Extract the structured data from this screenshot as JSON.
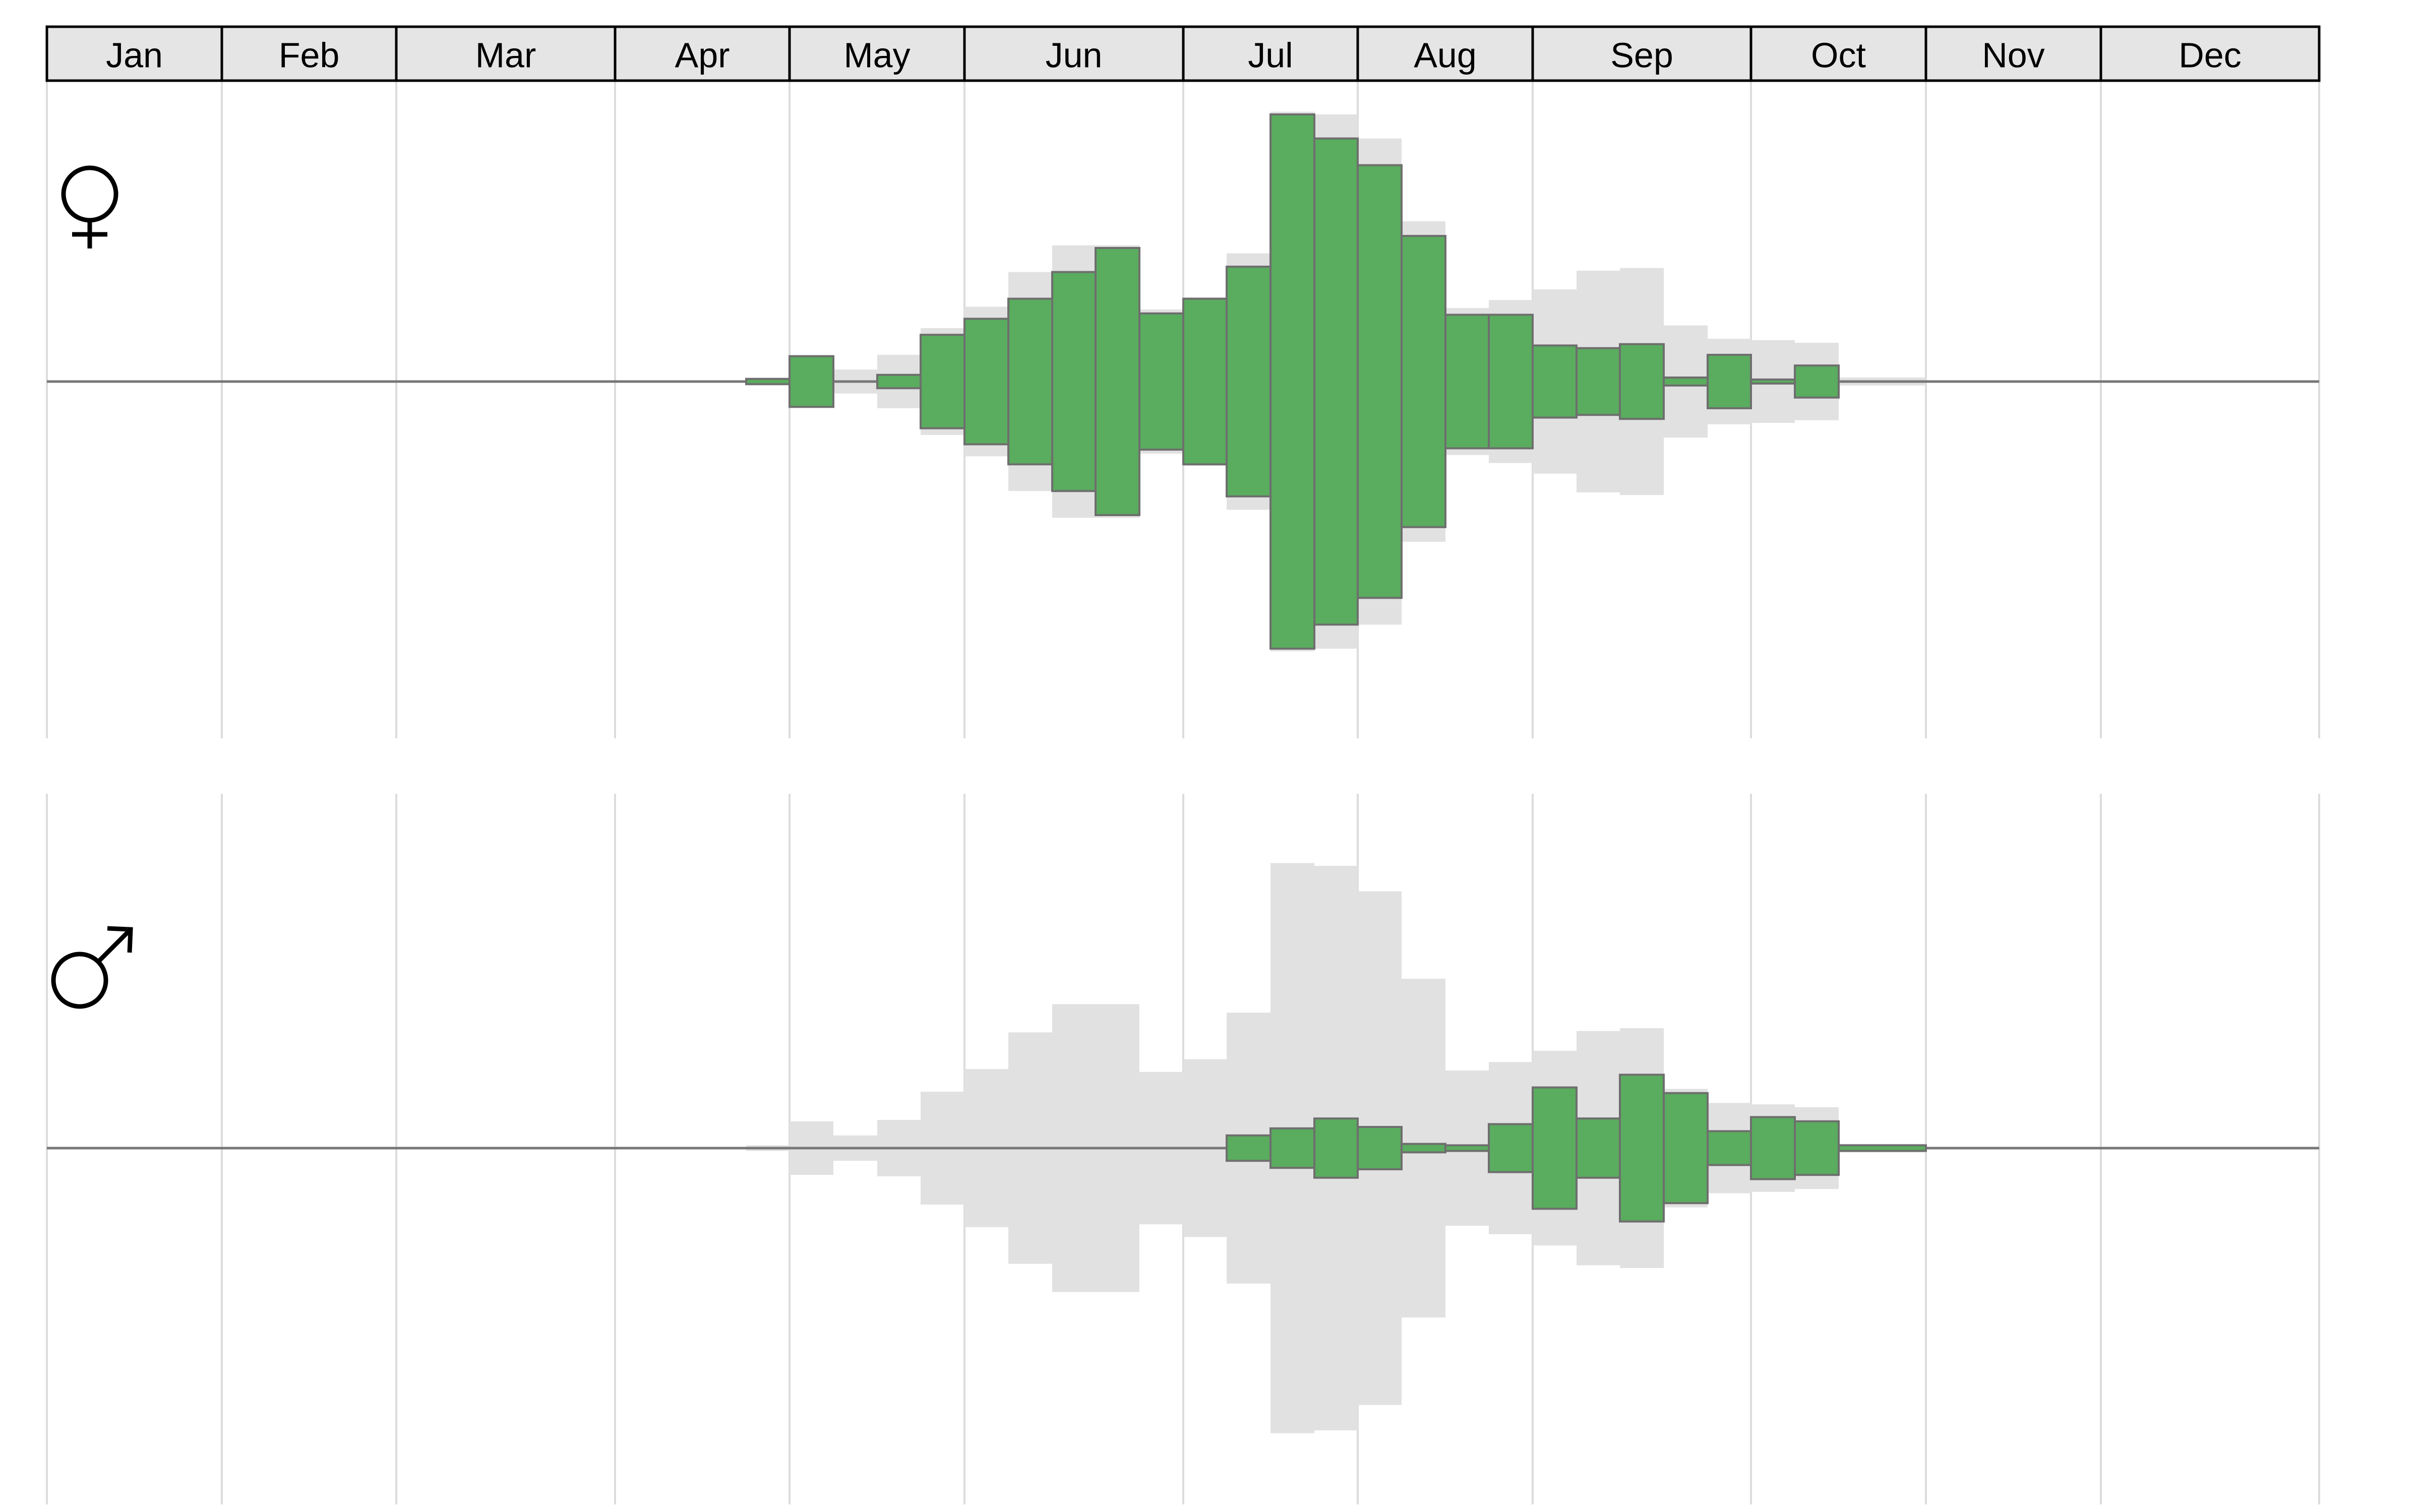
{
  "months": [
    "Jan",
    "Feb",
    "Mar",
    "Apr",
    "May",
    "Jun",
    "Jul",
    "Aug",
    "Sep",
    "Oct",
    "Nov",
    "Dec"
  ],
  "colors": {
    "bar": "#5aac5e",
    "bar_outline": "#6e6e6e",
    "overall_background": "#e1e1e1",
    "header_fill": "#e5e5e5",
    "grid": "#dcdcdc",
    "baseline": "#777777"
  },
  "panels": [
    {
      "id": "female",
      "icon": "female-symbol-icon"
    },
    {
      "id": "male",
      "icon": "male-symbol-icon"
    }
  ],
  "chart_data": {
    "type": "bar",
    "description_of_values": "Mirrored bars around a central baseline; one bar per roughly 10-day period. Values are relative magnitudes on a 0-1 scale (no numeric axis is printed).",
    "periods": [
      "Apr-3",
      "May-1",
      "May-2",
      "May-3",
      "Jun-1",
      "Jun-2",
      "Jun-3",
      "Jun-4",
      "Jun-5",
      "Jul-1",
      "Jul-2",
      "Jul-3",
      "Jul-4",
      "Aug-1",
      "Aug-2",
      "Aug-3",
      "Aug-4",
      "Sep-1",
      "Sep-2",
      "Sep-3",
      "Sep-4",
      "Sep-5",
      "Oct-1",
      "Oct-2",
      "Oct-3",
      "Nov-1"
    ],
    "series": [
      {
        "panel": "female",
        "values": [
          0.01,
          0.095,
          0.0,
          0.025,
          0.175,
          0.235,
          0.31,
          0.41,
          0.5,
          0.255,
          0.31,
          0.43,
          1.0,
          0.91,
          0.81,
          0.545,
          0.25,
          0.25,
          0.135,
          0.125,
          0.14,
          0.015,
          0.1,
          0.005,
          0.06,
          0.0
        ]
      },
      {
        "panel": "male",
        "values": [
          0.0,
          0.0,
          0.0,
          0.0,
          0.0,
          0.0,
          0.0,
          0.0,
          0.0,
          0.0,
          0.0,
          0.045,
          0.07,
          0.105,
          0.075,
          0.015,
          0.01,
          0.085,
          0.215,
          0.105,
          0.26,
          0.195,
          0.06,
          0.11,
          0.095,
          0.01
        ]
      },
      {
        "panel": "overall",
        "values": [
          0.01,
          0.095,
          0.045,
          0.1,
          0.2,
          0.28,
          0.41,
          0.51,
          0.51,
          0.27,
          0.315,
          0.48,
          1.01,
          1.0,
          0.91,
          0.6,
          0.275,
          0.305,
          0.345,
          0.415,
          0.425,
          0.21,
          0.16,
          0.155,
          0.145,
          0.015
        ]
      }
    ]
  }
}
